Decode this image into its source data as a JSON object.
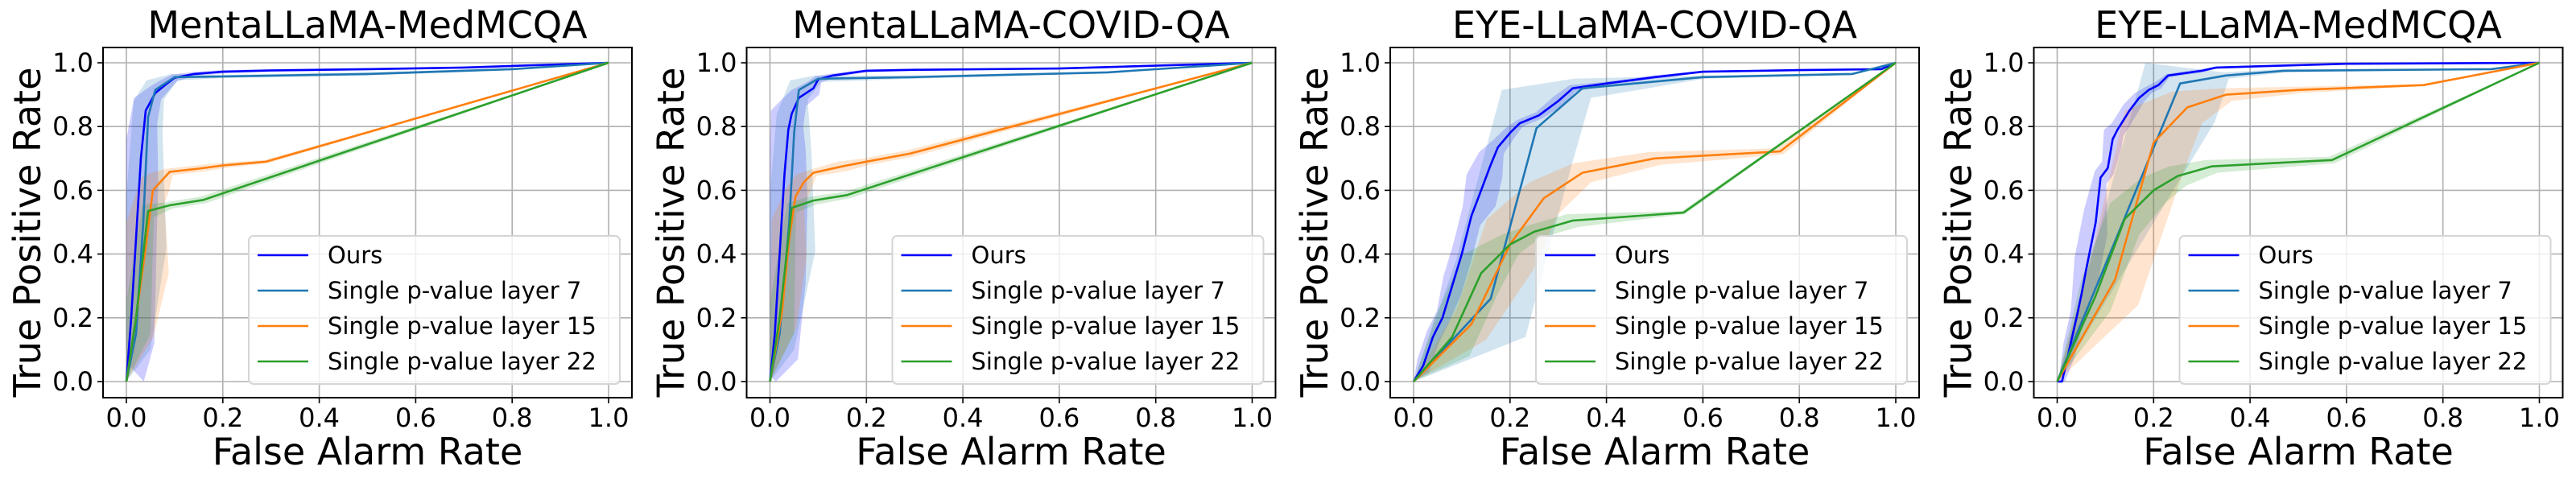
{
  "chart_data": [
    {
      "type": "line",
      "title": "MentaLLaMA-MedMCQA",
      "xlabel": "False Alarm Rate",
      "ylabel": "True Positive Rate",
      "xlim": [
        -0.05,
        1.05
      ],
      "ylim": [
        -0.05,
        1.05
      ],
      "xticks": [
        "0.0",
        "0.2",
        "0.4",
        "0.6",
        "0.8",
        "1.0"
      ],
      "yticks": [
        "0.0",
        "0.2",
        "0.4",
        "0.6",
        "0.8",
        "1.0"
      ],
      "grid": true,
      "legend_position": "lower-right",
      "series": [
        {
          "name": "Ours",
          "color": "#0000ff",
          "band_color": "#0000ff",
          "band_opacity": 0.2,
          "x": [
            0,
            0.01,
            0.02,
            0.03,
            0.04,
            0.06,
            0.08,
            0.1,
            0.14,
            0.2,
            0.3,
            0.5,
            0.7,
            1.0
          ],
          "y": [
            0,
            0.2,
            0.45,
            0.7,
            0.85,
            0.905,
            0.93,
            0.953,
            0.965,
            0.972,
            0.976,
            0.98,
            0.985,
            1.0
          ],
          "band": [
            0.06,
            0.08,
            0.07,
            0.06,
            0.04,
            0.02,
            0.015,
            0.01,
            0.006,
            0.005,
            0.004,
            0.003,
            0.002,
            0
          ]
        },
        {
          "name": "Single p-value layer 7",
          "color": "#1f77b4",
          "band_color": "#1f77b4",
          "band_opacity": 0.2,
          "x": [
            0,
            0.02,
            0.035,
            0.045,
            0.06,
            0.1,
            0.2,
            0.5,
            0.8,
            1.0
          ],
          "y": [
            0,
            0.15,
            0.5,
            0.83,
            0.915,
            0.955,
            0.957,
            0.965,
            0.98,
            1.0
          ],
          "band": [
            0,
            0.05,
            0.08,
            0.05,
            0.03,
            0.01,
            0.005,
            0.005,
            0.003,
            0
          ]
        },
        {
          "name": "Single p-value layer 15",
          "color": "#ff7f0e",
          "band_color": "#ff7f0e",
          "band_opacity": 0.2,
          "x": [
            0,
            0.02,
            0.04,
            0.055,
            0.07,
            0.09,
            0.15,
            0.2,
            0.29,
            1.0
          ],
          "y": [
            0,
            0.2,
            0.42,
            0.6,
            0.625,
            0.658,
            0.668,
            0.678,
            0.69,
            1.0
          ],
          "band": [
            0,
            0.06,
            0.08,
            0.04,
            0.03,
            0.01,
            0.01,
            0.008,
            0.005,
            0
          ]
        },
        {
          "name": "Single p-value layer 22",
          "color": "#2ca02c",
          "band_color": "#2ca02c",
          "band_opacity": 0.2,
          "x": [
            0,
            0.02,
            0.045,
            0.09,
            0.16,
            1.0
          ],
          "y": [
            0,
            0.2,
            0.535,
            0.553,
            0.57,
            1.0
          ],
          "band": [
            0,
            0.05,
            0.02,
            0.01,
            0.01,
            0
          ]
        }
      ]
    },
    {
      "type": "line",
      "title": "MentaLLaMA-COVID-QA",
      "xlabel": "False Alarm Rate",
      "ylabel": "True Positive Rate",
      "xlim": [
        -0.05,
        1.05
      ],
      "ylim": [
        -0.05,
        1.05
      ],
      "xticks": [
        "0.0",
        "0.2",
        "0.4",
        "0.6",
        "0.8",
        "1.0"
      ],
      "yticks": [
        "0.0",
        "0.2",
        "0.4",
        "0.6",
        "0.8",
        "1.0"
      ],
      "grid": true,
      "legend_position": "lower-right",
      "series": [
        {
          "name": "Ours",
          "color": "#0000ff",
          "band_color": "#0000ff",
          "band_opacity": 0.2,
          "x": [
            0,
            0.01,
            0.02,
            0.03,
            0.038,
            0.045,
            0.06,
            0.09,
            0.1,
            0.13,
            0.2,
            0.3,
            0.6,
            1.0
          ],
          "y": [
            0,
            0.15,
            0.4,
            0.65,
            0.79,
            0.84,
            0.89,
            0.92,
            0.948,
            0.96,
            0.975,
            0.978,
            0.982,
            1.0
          ],
          "band": [
            0.02,
            0.08,
            0.09,
            0.08,
            0.06,
            0.04,
            0.025,
            0.02,
            0.01,
            0.006,
            0.004,
            0.003,
            0.002,
            0
          ]
        },
        {
          "name": "Single p-value layer 7",
          "color": "#1f77b4",
          "band_color": "#1f77b4",
          "band_opacity": 0.2,
          "x": [
            0,
            0.02,
            0.04,
            0.05,
            0.06,
            0.1,
            0.3,
            0.7,
            1.0
          ],
          "y": [
            0,
            0.15,
            0.5,
            0.78,
            0.915,
            0.95,
            0.955,
            0.97,
            1.0
          ],
          "band": [
            0,
            0.05,
            0.09,
            0.06,
            0.03,
            0.01,
            0.005,
            0.003,
            0
          ]
        },
        {
          "name": "Single p-value layer 15",
          "color": "#ff7f0e",
          "band_color": "#ff7f0e",
          "band_opacity": 0.2,
          "x": [
            0,
            0.025,
            0.04,
            0.053,
            0.07,
            0.09,
            0.15,
            0.2,
            0.29,
            1.0
          ],
          "y": [
            0,
            0.22,
            0.45,
            0.58,
            0.625,
            0.655,
            0.675,
            0.69,
            0.715,
            1.0
          ],
          "band": [
            0,
            0.05,
            0.06,
            0.03,
            0.025,
            0.01,
            0.015,
            0.01,
            0.01,
            0
          ]
        },
        {
          "name": "Single p-value layer 22",
          "color": "#2ca02c",
          "band_color": "#2ca02c",
          "band_opacity": 0.2,
          "x": [
            0,
            0.02,
            0.045,
            0.09,
            0.16,
            1.0
          ],
          "y": [
            0,
            0.2,
            0.545,
            0.568,
            0.585,
            1.0
          ],
          "band": [
            0,
            0.05,
            0.015,
            0.012,
            0.01,
            0
          ]
        }
      ]
    },
    {
      "type": "line",
      "title": "EYE-LLaMA-COVID-QA",
      "xlabel": "False Alarm Rate",
      "ylabel": "True Positive Rate",
      "xlim": [
        -0.05,
        1.05
      ],
      "ylim": [
        -0.05,
        1.05
      ],
      "xticks": [
        "0.0",
        "0.2",
        "0.4",
        "0.6",
        "0.8",
        "1.0"
      ],
      "yticks": [
        "0.0",
        "0.2",
        "0.4",
        "0.6",
        "0.8",
        "1.0"
      ],
      "grid": true,
      "legend_position": "lower-right",
      "series": [
        {
          "name": "Ours",
          "color": "#0000ff",
          "band_color": "#0000ff",
          "band_opacity": 0.2,
          "x": [
            0,
            0.02,
            0.04,
            0.06,
            0.08,
            0.1,
            0.12,
            0.14,
            0.16,
            0.175,
            0.2,
            0.22,
            0.26,
            0.3,
            0.33,
            0.4,
            0.5,
            0.6,
            0.8,
            0.97,
            1.0
          ],
          "y": [
            0,
            0.05,
            0.14,
            0.2,
            0.3,
            0.4,
            0.52,
            0.6,
            0.68,
            0.735,
            0.78,
            0.81,
            0.835,
            0.88,
            0.92,
            0.935,
            0.955,
            0.972,
            0.977,
            0.98,
            1.0
          ],
          "band": [
            0,
            0.02,
            0.02,
            0.02,
            0.03,
            0.03,
            0.03,
            0.05,
            0.04,
            0.02,
            0.015,
            0.01,
            0.01,
            0.015,
            0.01,
            0.005,
            0.005,
            0.003,
            0.003,
            0.003,
            0
          ]
        },
        {
          "name": "Single p-value layer 7",
          "color": "#1f77b4",
          "band_color": "#1f77b4",
          "band_opacity": 0.2,
          "x": [
            0,
            0.16,
            0.255,
            0.35,
            0.6,
            0.91,
            1.0
          ],
          "y": [
            0,
            0.26,
            0.795,
            0.92,
            0.955,
            0.965,
            1.0
          ],
          "band": [
            0,
            0.12,
            0.12,
            0.03,
            0.005,
            0.003,
            0
          ]
        },
        {
          "name": "Single p-value layer 15",
          "color": "#ff7f0e",
          "band_color": "#ff7f0e",
          "band_opacity": 0.2,
          "x": [
            0,
            0.12,
            0.2,
            0.27,
            0.35,
            0.5,
            0.76,
            1.0
          ],
          "y": [
            0,
            0.18,
            0.43,
            0.575,
            0.655,
            0.7,
            0.722,
            1.0
          ],
          "band": [
            0,
            0.05,
            0.08,
            0.05,
            0.03,
            0.02,
            0.01,
            0
          ]
        },
        {
          "name": "Single p-value layer 22",
          "color": "#2ca02c",
          "band_color": "#2ca02c",
          "band_opacity": 0.2,
          "x": [
            0,
            0.08,
            0.14,
            0.2,
            0.25,
            0.33,
            0.56,
            1.0
          ],
          "y": [
            0,
            0.14,
            0.34,
            0.43,
            0.47,
            0.505,
            0.53,
            1.0
          ],
          "band": [
            0,
            0.06,
            0.06,
            0.03,
            0.02,
            0.02,
            0.005,
            0
          ]
        }
      ]
    },
    {
      "type": "line",
      "title": "EYE-LLaMA-MedMCQA",
      "xlabel": "False Alarm Rate",
      "ylabel": "True Positive Rate",
      "xlim": [
        -0.05,
        1.05
      ],
      "ylim": [
        -0.05,
        1.05
      ],
      "xticks": [
        "0.0",
        "0.2",
        "0.4",
        "0.6",
        "0.8",
        "1.0"
      ],
      "yticks": [
        "0.0",
        "0.2",
        "0.4",
        "0.6",
        "0.8",
        "1.0"
      ],
      "grid": true,
      "legend_position": "lower-right",
      "series": [
        {
          "name": "Ours",
          "color": "#0000ff",
          "band_color": "#0000ff",
          "band_opacity": 0.2,
          "x": [
            0,
            0.01,
            0.025,
            0.04,
            0.05,
            0.06,
            0.08,
            0.09,
            0.105,
            0.115,
            0.125,
            0.15,
            0.17,
            0.19,
            0.21,
            0.23,
            0.3,
            0.33,
            0.6,
            1.0
          ],
          "y": [
            0,
            0.0,
            0.1,
            0.2,
            0.27,
            0.35,
            0.5,
            0.64,
            0.67,
            0.76,
            0.79,
            0.85,
            0.89,
            0.915,
            0.93,
            0.96,
            0.975,
            0.985,
            0.997,
            1.0
          ],
          "band": [
            0,
            0.01,
            0.02,
            0.02,
            0.03,
            0.04,
            0.04,
            0.02,
            0.02,
            0.03,
            0.02,
            0.02,
            0.015,
            0.01,
            0.01,
            0.005,
            0.005,
            0.003,
            0.002,
            0
          ]
        },
        {
          "name": "Single p-value layer 7",
          "color": "#1f77b4",
          "band_color": "#1f77b4",
          "band_opacity": 0.2,
          "x": [
            0,
            0.255,
            0.35,
            0.47,
            0.9,
            1.0
          ],
          "y": [
            0,
            0.935,
            0.96,
            0.975,
            0.98,
            1.0
          ],
          "band": [
            0,
            0.12,
            0.01,
            0.005,
            0.003,
            0
          ]
        },
        {
          "name": "Single p-value layer 15",
          "color": "#ff7f0e",
          "band_color": "#ff7f0e",
          "band_opacity": 0.2,
          "x": [
            0,
            0.12,
            0.2,
            0.27,
            0.35,
            0.5,
            0.76,
            1.0
          ],
          "y": [
            0,
            0.32,
            0.75,
            0.86,
            0.9,
            0.915,
            0.93,
            1.0
          ],
          "band": [
            0,
            0.08,
            0.1,
            0.05,
            0.02,
            0.01,
            0.003,
            0
          ]
        },
        {
          "name": "Single p-value layer 22",
          "color": "#2ca02c",
          "band_color": "#2ca02c",
          "band_opacity": 0.2,
          "x": [
            0,
            0.08,
            0.14,
            0.2,
            0.25,
            0.32,
            0.57,
            1.0
          ],
          "y": [
            0,
            0.27,
            0.51,
            0.6,
            0.645,
            0.675,
            0.695,
            1.0
          ],
          "band": [
            0,
            0.05,
            0.05,
            0.04,
            0.03,
            0.02,
            0.01,
            0
          ]
        }
      ]
    }
  ]
}
